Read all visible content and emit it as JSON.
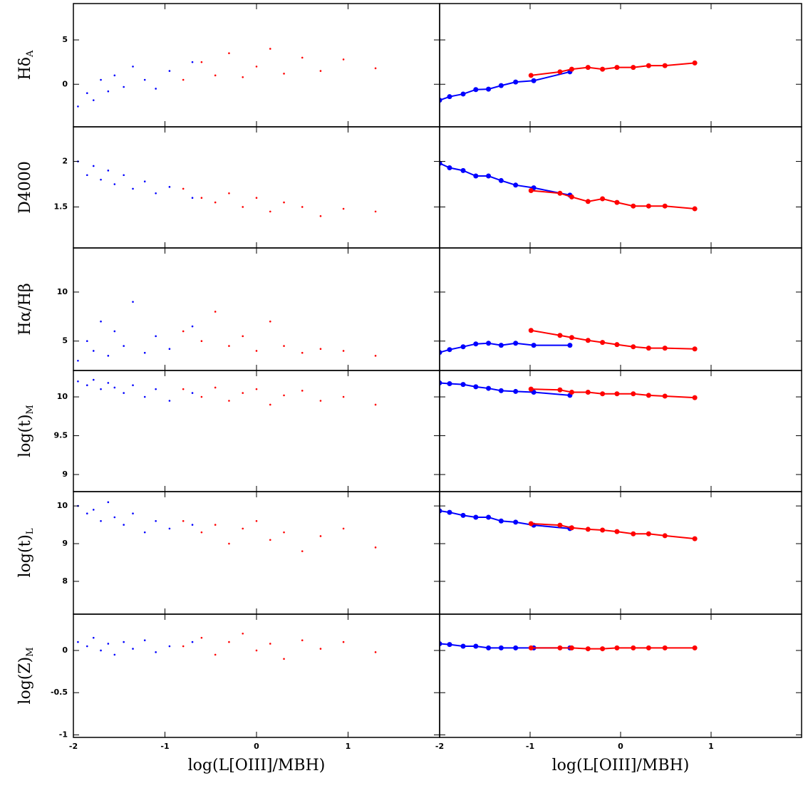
{
  "chart_data": [
    {
      "type": "scatter",
      "ylabel": "Hδ",
      "ylabel_sub": "A",
      "xlim": [
        -2,
        2
      ],
      "xticks": [
        -2,
        -1,
        0,
        1
      ],
      "ylim": [
        -4.8,
        9.1
      ],
      "yticks": [
        0,
        5
      ],
      "series": [
        {
          "color": "#0000ff",
          "x": [
            -1.95,
            -1.85,
            -1.78,
            -1.7,
            -1.62,
            -1.55,
            -1.45,
            -1.35,
            -1.22,
            -1.1,
            -0.95,
            -0.7
          ],
          "values": [
            -2.5,
            -1,
            -1.8,
            0.5,
            -0.8,
            1,
            -0.3,
            2,
            0.5,
            -0.5,
            1.5,
            2.5
          ]
        },
        {
          "color": "#ff0000",
          "x": [
            -0.8,
            -0.6,
            -0.45,
            -0.3,
            -0.15,
            0,
            0.15,
            0.3,
            0.5,
            0.7,
            0.95,
            1.3
          ],
          "values": [
            0.5,
            2.5,
            1,
            3.5,
            0.8,
            2,
            4,
            1.2,
            3,
            1.5,
            2.8,
            1.8
          ]
        }
      ]
    },
    {
      "type": "line",
      "xlim": [
        -2,
        2
      ],
      "xticks": [
        -2,
        -1,
        0,
        1
      ],
      "ylim": [
        -4.8,
        9.1
      ],
      "yticks": [
        0,
        5
      ],
      "series": [
        {
          "color": "#0000ff",
          "x": [
            -2,
            -1.89,
            -1.74,
            -1.6,
            -1.46,
            -1.32,
            -1.16,
            -0.96,
            -0.56
          ],
          "values": [
            -1.8,
            -1.4,
            -1.1,
            -0.6,
            -0.55,
            -0.15,
            0.25,
            0.4,
            1.4
          ]
        },
        {
          "color": "#ff0000",
          "x": [
            -0.99,
            -0.67,
            -0.54,
            -0.36,
            -0.2,
            -0.04,
            0.14,
            0.31,
            0.49,
            0.82
          ],
          "values": [
            1.0,
            1.4,
            1.7,
            1.9,
            1.7,
            1.9,
            1.9,
            2.1,
            2.1,
            2.4
          ]
        }
      ]
    },
    {
      "type": "scatter",
      "ylabel": "D4000",
      "xlim": [
        -2,
        2
      ],
      "xticks": [
        -2,
        -1,
        0,
        1
      ],
      "ylim": [
        1.05,
        2.38
      ],
      "yticks": [
        1.5,
        2
      ],
      "series": [
        {
          "color": "#0000ff",
          "x": [
            -1.95,
            -1.85,
            -1.78,
            -1.7,
            -1.62,
            -1.55,
            -1.45,
            -1.35,
            -1.22,
            -1.1,
            -0.95,
            -0.7
          ],
          "values": [
            2.0,
            1.85,
            1.95,
            1.8,
            1.9,
            1.75,
            1.85,
            1.7,
            1.78,
            1.65,
            1.72,
            1.6
          ]
        },
        {
          "color": "#ff0000",
          "x": [
            -0.8,
            -0.6,
            -0.45,
            -0.3,
            -0.15,
            0,
            0.15,
            0.3,
            0.5,
            0.7,
            0.95,
            1.3
          ],
          "values": [
            1.7,
            1.6,
            1.55,
            1.65,
            1.5,
            1.6,
            1.45,
            1.55,
            1.5,
            1.4,
            1.48,
            1.45
          ]
        }
      ]
    },
    {
      "type": "line",
      "xlim": [
        -2,
        2
      ],
      "xticks": [
        -2,
        -1,
        0,
        1
      ],
      "ylim": [
        1.05,
        2.38
      ],
      "yticks": [
        1.5,
        2
      ],
      "series": [
        {
          "color": "#0000ff",
          "x": [
            -2,
            -1.89,
            -1.74,
            -1.6,
            -1.46,
            -1.32,
            -1.16,
            -0.96,
            -0.56
          ],
          "values": [
            1.98,
            1.93,
            1.9,
            1.84,
            1.84,
            1.79,
            1.74,
            1.71,
            1.63
          ]
        },
        {
          "color": "#ff0000",
          "x": [
            -0.99,
            -0.67,
            -0.54,
            -0.36,
            -0.2,
            -0.04,
            0.14,
            0.31,
            0.49,
            0.82
          ],
          "values": [
            1.68,
            1.65,
            1.61,
            1.56,
            1.59,
            1.55,
            1.51,
            1.51,
            1.51,
            1.48
          ]
        }
      ]
    },
    {
      "type": "scatter",
      "ylabel": "Hα/Hβ",
      "xlim": [
        -2,
        2
      ],
      "xticks": [
        -2,
        -1,
        0,
        1
      ],
      "ylim": [
        2,
        14.5
      ],
      "yticks": [
        5,
        10
      ],
      "series": [
        {
          "color": "#0000ff",
          "x": [
            -1.95,
            -1.85,
            -1.78,
            -1.7,
            -1.62,
            -1.55,
            -1.45,
            -1.35,
            -1.22,
            -1.1,
            -0.95,
            -0.7
          ],
          "values": [
            3,
            5,
            4,
            7,
            3.5,
            6,
            4.5,
            9,
            3.8,
            5.5,
            4.2,
            6.5
          ]
        },
        {
          "color": "#ff0000",
          "x": [
            -0.8,
            -0.6,
            -0.45,
            -0.3,
            -0.15,
            0,
            0.15,
            0.3,
            0.5,
            0.7,
            0.95,
            1.3
          ],
          "values": [
            6,
            5,
            8,
            4.5,
            5.5,
            4,
            7,
            4.5,
            3.8,
            4.2,
            4,
            3.5
          ]
        }
      ]
    },
    {
      "type": "line",
      "xlim": [
        -2,
        2
      ],
      "xticks": [
        -2,
        -1,
        0,
        1
      ],
      "ylim": [
        2,
        14.5
      ],
      "yticks": [
        5,
        10
      ],
      "series": [
        {
          "color": "#0000ff",
          "x": [
            -2,
            -1.89,
            -1.74,
            -1.6,
            -1.46,
            -1.32,
            -1.16,
            -0.96,
            -0.56
          ],
          "values": [
            3.84,
            4.13,
            4.42,
            4.71,
            4.78,
            4.57,
            4.78,
            4.57,
            4.57
          ]
        },
        {
          "color": "#ff0000",
          "x": [
            -0.99,
            -0.67,
            -0.54,
            -0.36,
            -0.2,
            -0.04,
            0.14,
            0.31,
            0.49,
            0.82
          ],
          "values": [
            6.09,
            5.58,
            5.36,
            5.07,
            4.86,
            4.64,
            4.42,
            4.28,
            4.28,
            4.2
          ]
        }
      ]
    },
    {
      "type": "scatter",
      "ylabel": "log(t)",
      "ylabel_sub": "M",
      "xlim": [
        -2,
        2
      ],
      "xticks": [
        -2,
        -1,
        0,
        1
      ],
      "ylim": [
        8.78,
        10.34
      ],
      "yticks": [
        9,
        9.5,
        10
      ],
      "series": [
        {
          "color": "#0000ff",
          "x": [
            -1.95,
            -1.85,
            -1.78,
            -1.7,
            -1.62,
            -1.55,
            -1.45,
            -1.35,
            -1.22,
            -1.1,
            -0.95,
            -0.7
          ],
          "values": [
            10.2,
            10.15,
            10.22,
            10.1,
            10.18,
            10.12,
            10.05,
            10.15,
            10.0,
            10.1,
            9.95,
            10.05
          ]
        },
        {
          "color": "#ff0000",
          "x": [
            -0.8,
            -0.6,
            -0.45,
            -0.3,
            -0.15,
            0,
            0.15,
            0.3,
            0.5,
            0.7,
            0.95,
            1.3
          ],
          "values": [
            10.1,
            10.0,
            10.12,
            9.95,
            10.05,
            10.1,
            9.9,
            10.02,
            10.08,
            9.95,
            10.0,
            9.9
          ]
        }
      ]
    },
    {
      "type": "line",
      "xlim": [
        -2,
        2
      ],
      "xticks": [
        -2,
        -1,
        0,
        1
      ],
      "ylim": [
        8.78,
        10.34
      ],
      "yticks": [
        9,
        9.5,
        10
      ],
      "series": [
        {
          "color": "#0000ff",
          "x": [
            -2,
            -1.89,
            -1.74,
            -1.6,
            -1.46,
            -1.32,
            -1.16,
            -0.96,
            -0.56
          ],
          "values": [
            10.18,
            10.17,
            10.16,
            10.13,
            10.11,
            10.08,
            10.07,
            10.06,
            10.02
          ]
        },
        {
          "color": "#ff0000",
          "x": [
            -0.99,
            -0.67,
            -0.54,
            -0.36,
            -0.2,
            -0.04,
            0.14,
            0.31,
            0.49,
            0.82
          ],
          "values": [
            10.1,
            10.09,
            10.06,
            10.06,
            10.04,
            10.04,
            10.04,
            10.02,
            10.01,
            9.99
          ]
        }
      ]
    },
    {
      "type": "scatter",
      "ylabel": "log(t)",
      "ylabel_sub": "L",
      "xlim": [
        -2,
        2
      ],
      "xticks": [
        -2,
        -1,
        0,
        1
      ],
      "ylim": [
        7.13,
        10.38
      ],
      "yticks": [
        8,
        9,
        10
      ],
      "series": [
        {
          "color": "#0000ff",
          "x": [
            -1.95,
            -1.85,
            -1.78,
            -1.7,
            -1.62,
            -1.55,
            -1.45,
            -1.35,
            -1.22,
            -1.1,
            -0.95,
            -0.7
          ],
          "values": [
            10.0,
            9.8,
            9.9,
            9.6,
            10.1,
            9.7,
            9.5,
            9.8,
            9.3,
            9.6,
            9.4,
            9.5
          ]
        },
        {
          "color": "#ff0000",
          "x": [
            -0.8,
            -0.6,
            -0.45,
            -0.3,
            -0.15,
            0,
            0.15,
            0.3,
            0.5,
            0.7,
            0.95,
            1.3
          ],
          "values": [
            9.6,
            9.3,
            9.5,
            9.0,
            9.4,
            9.6,
            9.1,
            9.3,
            8.8,
            9.2,
            9.4,
            8.9
          ]
        }
      ]
    },
    {
      "type": "line",
      "xlim": [
        -2,
        2
      ],
      "xticks": [
        -2,
        -1,
        0,
        1
      ],
      "ylim": [
        7.13,
        10.38
      ],
      "yticks": [
        8,
        9,
        10
      ],
      "series": [
        {
          "color": "#0000ff",
          "x": [
            -2,
            -1.89,
            -1.74,
            -1.6,
            -1.46,
            -1.32,
            -1.16,
            -0.96,
            -0.56
          ],
          "values": [
            9.87,
            9.83,
            9.75,
            9.7,
            9.7,
            9.6,
            9.57,
            9.49,
            9.4
          ]
        },
        {
          "color": "#ff0000",
          "x": [
            -0.99,
            -0.67,
            -0.54,
            -0.36,
            -0.2,
            -0.04,
            0.14,
            0.31,
            0.49,
            0.82
          ],
          "values": [
            9.53,
            9.49,
            9.42,
            9.38,
            9.36,
            9.32,
            9.26,
            9.26,
            9.21,
            9.13
          ]
        }
      ]
    },
    {
      "type": "scatter",
      "ylabel": "log(Z)",
      "ylabel_sub": "M",
      "xlabel": "log(L[OIII]/MBH)",
      "xlim": [
        -2,
        2
      ],
      "xticks": [
        -2,
        -1,
        0,
        1
      ],
      "ylim": [
        -1.03,
        0.43
      ],
      "yticks": [
        -1,
        -0.5,
        0
      ],
      "series": [
        {
          "color": "#0000ff",
          "x": [
            -1.95,
            -1.85,
            -1.78,
            -1.7,
            -1.62,
            -1.55,
            -1.45,
            -1.35,
            -1.22,
            -1.1,
            -0.95,
            -0.7
          ],
          "values": [
            0.1,
            0.05,
            0.15,
            0,
            0.08,
            -0.05,
            0.1,
            0.02,
            0.12,
            -0.02,
            0.05,
            0.1
          ]
        },
        {
          "color": "#ff0000",
          "x": [
            -0.8,
            -0.6,
            -0.45,
            -0.3,
            -0.15,
            0,
            0.15,
            0.3,
            0.5,
            0.7,
            0.95,
            1.3
          ],
          "values": [
            0.05,
            0.15,
            -0.05,
            0.1,
            0.2,
            0,
            0.08,
            -0.1,
            0.12,
            0.02,
            0.1,
            -0.02
          ]
        }
      ]
    },
    {
      "type": "line",
      "xlabel": "log(L[OIII]/MBH)",
      "xlim": [
        -2,
        2
      ],
      "xticks": [
        -2,
        -1,
        0,
        1
      ],
      "ylim": [
        -1.03,
        0.43
      ],
      "yticks": [
        -1,
        -0.5,
        0
      ],
      "series": [
        {
          "color": "#0000ff",
          "x": [
            -2,
            -1.89,
            -1.74,
            -1.6,
            -1.46,
            -1.32,
            -1.16,
            -0.96,
            -0.56
          ],
          "values": [
            0.08,
            0.07,
            0.05,
            0.05,
            0.03,
            0.03,
            0.03,
            0.03,
            0.03
          ]
        },
        {
          "color": "#ff0000",
          "x": [
            -0.99,
            -0.67,
            -0.54,
            -0.36,
            -0.2,
            -0.04,
            0.14,
            0.31,
            0.49,
            0.82
          ],
          "values": [
            0.03,
            0.03,
            0.03,
            0.02,
            0.02,
            0.03,
            0.03,
            0.03,
            0.03,
            0.03
          ]
        }
      ]
    }
  ]
}
